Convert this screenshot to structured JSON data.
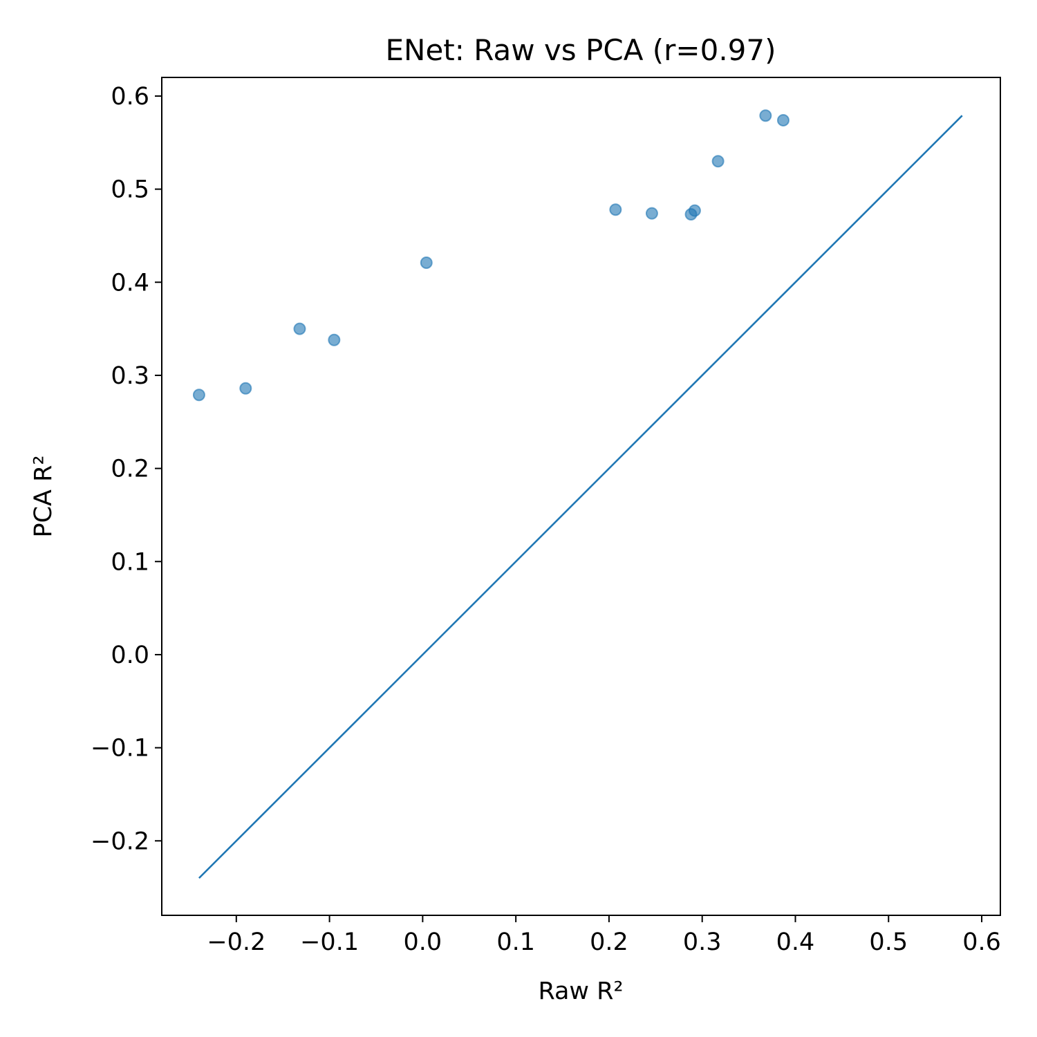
{
  "chart_data": {
    "type": "scatter",
    "title": "ENet: Raw vs PCA (r=0.97)",
    "xlabel": "Raw R²",
    "ylabel": "PCA R²",
    "xlim": [
      -0.28,
      0.62
    ],
    "ylim": [
      -0.28,
      0.62
    ],
    "xticks": [
      -0.2,
      -0.1,
      0.0,
      0.1,
      0.2,
      0.3,
      0.4,
      0.5,
      0.6
    ],
    "yticks": [
      -0.2,
      -0.1,
      0.0,
      0.1,
      0.2,
      0.3,
      0.4,
      0.5,
      0.6
    ],
    "xtick_labels": [
      "−0.2",
      "−0.1",
      "0.0",
      "0.1",
      "0.2",
      "0.3",
      "0.4",
      "0.5",
      "0.6"
    ],
    "ytick_labels": [
      "−0.2",
      "−0.1",
      "0.0",
      "0.1",
      "0.2",
      "0.3",
      "0.4",
      "0.5",
      "0.6"
    ],
    "grid": false,
    "legend": false,
    "points": [
      {
        "x": -0.24,
        "y": 0.279
      },
      {
        "x": -0.19,
        "y": 0.286
      },
      {
        "x": -0.132,
        "y": 0.35
      },
      {
        "x": -0.095,
        "y": 0.338
      },
      {
        "x": 0.004,
        "y": 0.421
      },
      {
        "x": 0.207,
        "y": 0.478
      },
      {
        "x": 0.246,
        "y": 0.474
      },
      {
        "x": 0.288,
        "y": 0.473
      },
      {
        "x": 0.292,
        "y": 0.477
      },
      {
        "x": 0.317,
        "y": 0.53
      },
      {
        "x": 0.368,
        "y": 0.579
      },
      {
        "x": 0.387,
        "y": 0.574
      }
    ],
    "reference_line": {
      "x": [
        -0.24,
        0.579
      ],
      "y": [
        -0.24,
        0.579
      ]
    },
    "point_color": "#1f77b4",
    "point_alpha": 0.6,
    "line_color": "#1f77b4"
  }
}
